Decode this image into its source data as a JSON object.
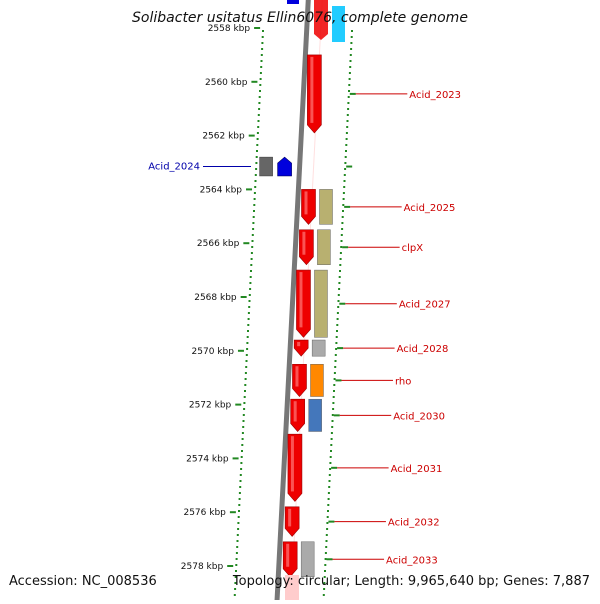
{
  "title": "Solibacter usitatus Ellin6076, complete genome",
  "footer": {
    "accession": "Accession: NC_008536",
    "topology": "Topology: circular; Length: 9,965,640 bp; Genes: 7,887"
  },
  "scale_labels": [
    {
      "pos": 2558,
      "label": "2558 kbp"
    },
    {
      "pos": 2560,
      "label": "2560 kbp"
    },
    {
      "pos": 2562,
      "label": "2562 kbp"
    },
    {
      "pos": 2564,
      "label": "2564 kbp"
    },
    {
      "pos": 2566,
      "label": "2566 kbp"
    },
    {
      "pos": 2568,
      "label": "2568 kbp"
    },
    {
      "pos": 2570,
      "label": "2570 kbp"
    },
    {
      "pos": 2572,
      "label": "2572 kbp"
    },
    {
      "pos": 2574,
      "label": "2574 kbp"
    },
    {
      "pos": 2576,
      "label": "2576 kbp"
    },
    {
      "pos": 2578,
      "label": "2578 kbp"
    }
  ],
  "genes": [
    {
      "name": "Acid_2023",
      "strand": "+",
      "start": 2559.0,
      "end": 2561.9,
      "color": "#ee0000",
      "cog": "#ffffff"
    },
    {
      "name": "Acid_2024",
      "strand": "-",
      "start": 2562.8,
      "end": 2563.5,
      "color": "#0000dd",
      "cog": "#666666"
    },
    {
      "name": "Acid_2025",
      "strand": "+",
      "start": 2564.0,
      "end": 2565.3,
      "color": "#ee0000",
      "cog": "#b8b070"
    },
    {
      "name": "clpX",
      "strand": "+",
      "start": 2565.5,
      "end": 2566.8,
      "color": "#ee0000",
      "cog": "#b8b070"
    },
    {
      "name": "Acid_2027",
      "strand": "+",
      "start": 2567.0,
      "end": 2569.5,
      "color": "#ee0000",
      "cog": "#b8b070"
    },
    {
      "name": "Acid_2028",
      "strand": "+",
      "start": 2569.6,
      "end": 2570.2,
      "color": "#ee0000",
      "cog": "#aaaaaa"
    },
    {
      "name": "rho",
      "strand": "+",
      "start": 2570.5,
      "end": 2571.7,
      "color": "#ee0000",
      "cog": "#ff8800"
    },
    {
      "name": "Acid_2030",
      "strand": "+",
      "start": 2571.8,
      "end": 2573.0,
      "color": "#ee0000",
      "cog": "#4477bb"
    },
    {
      "name": "Acid_2031",
      "strand": "+",
      "start": 2573.1,
      "end": 2575.6,
      "color": "#ee0000",
      "cog": "#ffffff"
    },
    {
      "name": "Acid_2032",
      "strand": "+",
      "start": 2575.8,
      "end": 2576.9,
      "color": "#ee0000",
      "cog": "#ffffff"
    },
    {
      "name": "Acid_2033",
      "strand": "+",
      "start": 2577.1,
      "end": 2578.4,
      "color": "#ee0000",
      "cog": "#aaaaaa"
    }
  ]
}
